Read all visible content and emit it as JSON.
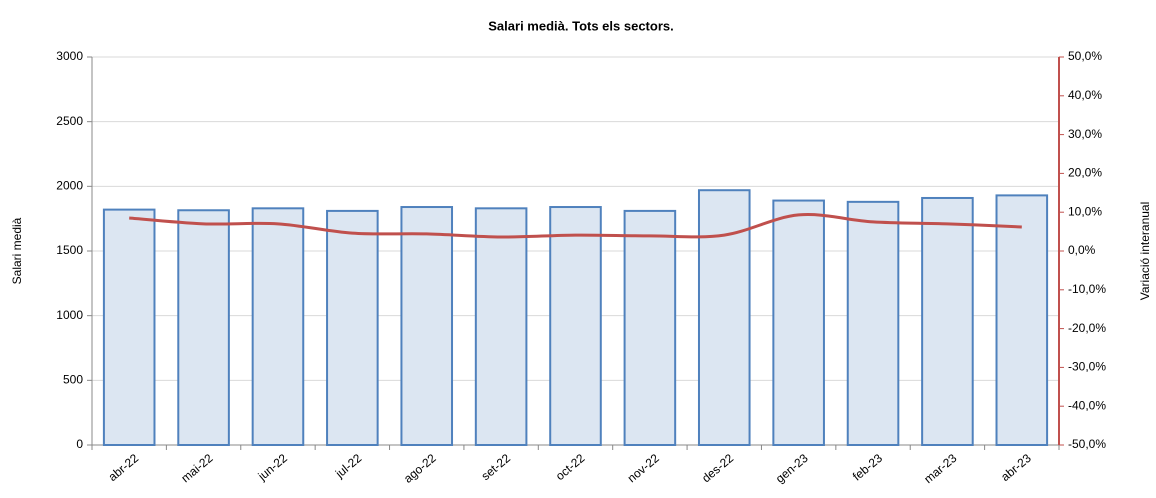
{
  "chart_data": {
    "type": "bar-line",
    "title": "Salari medià. Tots els sectors.",
    "y_label": "Salari medià",
    "y2_label": "Variació interanual",
    "categories": [
      "abr-22",
      "mai-22",
      "jun-22",
      "jul-22",
      "ago-22",
      "set-22",
      "oct-22",
      "nov-22",
      "des-22",
      "gen-23",
      "feb-23",
      "mar-23",
      "abr-23"
    ],
    "series": [
      {
        "name": "Salari medià",
        "type": "bar",
        "color": "#dce6f2",
        "edge_color": "#4f81bd",
        "values": [
          1820,
          1815,
          1830,
          1810,
          1840,
          1830,
          1840,
          1810,
          1970,
          1890,
          1880,
          1910,
          1930
        ]
      },
      {
        "name": "Variació interanual",
        "type": "line",
        "axis": "y2",
        "color": "#c0504d",
        "values": [
          8.5,
          7.0,
          7.0,
          4.6,
          4.4,
          3.6,
          4.1,
          3.9,
          4.1,
          9.3,
          7.5,
          7.0,
          6.2
        ]
      }
    ],
    "ylim": [
      0,
      3000
    ],
    "yticks": [
      0,
      500,
      1000,
      1500,
      2000,
      2500,
      3000
    ],
    "y2lim": [
      -50,
      50
    ],
    "y2ticks": [
      {
        "value": -50,
        "label": "-50,0%"
      },
      {
        "value": -40,
        "label": "-40,0%"
      },
      {
        "value": -30,
        "label": "-30,0%"
      },
      {
        "value": -20,
        "label": "-20,0%"
      },
      {
        "value": -10,
        "label": "-10,0%"
      },
      {
        "value": 0,
        "label": "0,0%"
      },
      {
        "value": 10,
        "label": "10,0%"
      },
      {
        "value": 20,
        "label": "20,0%"
      },
      {
        "value": 30,
        "label": "30,0%"
      },
      {
        "value": 40,
        "label": "40,0%"
      },
      {
        "value": 50,
        "label": "50,0%"
      }
    ],
    "grid": true
  }
}
